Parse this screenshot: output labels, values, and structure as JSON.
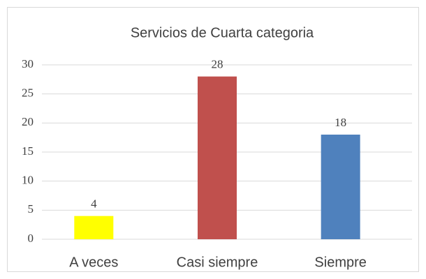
{
  "chart_data": {
    "type": "bar",
    "title": "Servicios de Cuarta categoria",
    "categories": [
      "A veces",
      "Casi siempre",
      "Siempre"
    ],
    "values": [
      4,
      28,
      18
    ],
    "colors": [
      "#ffff00",
      "#c0504d",
      "#4f81bd"
    ],
    "ylim": [
      0,
      30
    ],
    "yticks": [
      0,
      5,
      10,
      15,
      20,
      25,
      30
    ],
    "grid": true
  }
}
